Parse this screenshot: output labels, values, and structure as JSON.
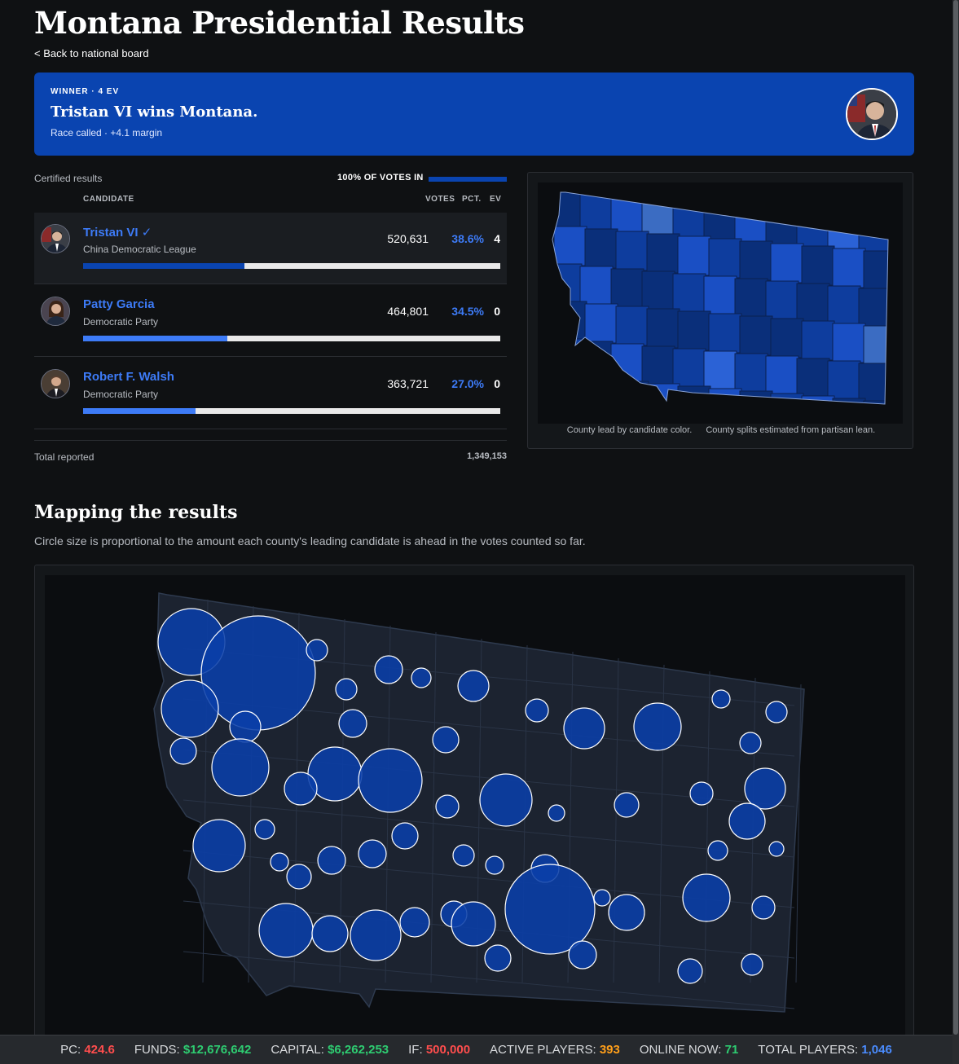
{
  "page": {
    "title": "Montana Presidential Results",
    "back_link": "< Back to national board"
  },
  "winner": {
    "tag": "WINNER · 4 EV",
    "headline": "Tristan VI wins Montana.",
    "sub": "Race called · +4.1 margin"
  },
  "results": {
    "certified_label": "Certified results",
    "votes_in": "100% OF VOTES IN",
    "col_candidate": "CANDIDATE",
    "col_votes": "VOTES",
    "col_pct": "PCT.",
    "col_ev": "EV",
    "candidates": [
      {
        "name": "Tristan VI ✓",
        "party": "China Democratic League",
        "votes": "520,631",
        "pct": "38.6%",
        "ev": "4",
        "share": 0.386,
        "bar_color": "#0a44b0"
      },
      {
        "name": "Patty Garcia",
        "party": "Democratic Party",
        "votes": "464,801",
        "pct": "34.5%",
        "ev": "0",
        "share": 0.345,
        "bar_color": "#3d7bf7"
      },
      {
        "name": "Robert F. Walsh",
        "party": "Democratic Party",
        "votes": "363,721",
        "pct": "27.0%",
        "ev": "0",
        "share": 0.27,
        "bar_color": "#3d7bf7"
      }
    ],
    "total_label": "Total reported",
    "total_value": "1,349,153"
  },
  "county_map": {
    "caption_1": "County lead by candidate color.",
    "caption_2": "County splits estimated from partisan lean.",
    "colors": [
      "#0a2f7a",
      "#0e3d9e",
      "#1a4fc4",
      "#2b62d6",
      "#3b6cc2"
    ]
  },
  "mapping": {
    "title": "Mapping the results",
    "description": "Circle size is proportional to the amount each county's leading candidate is ahead in the votes counted so far."
  },
  "status_bar": {
    "pc_label": "PC:",
    "pc_value": "424.6",
    "pc_color": "#ff4d4d",
    "funds_label": "FUNDS:",
    "funds_value": "$12,676,642",
    "funds_color": "#2ecc71",
    "capital_label": "CAPITAL:",
    "capital_value": "$6,262,253",
    "capital_color": "#2ecc71",
    "if_label": "IF:",
    "if_value": "500,000",
    "if_color": "#ff4d4d",
    "active_label": "ACTIVE PLAYERS:",
    "active_value": "393",
    "active_color": "#ff9f1a",
    "online_label": "ONLINE NOW:",
    "online_value": "71",
    "online_color": "#2ecc71",
    "total_label": "TOTAL PLAYERS:",
    "total_value": "1,046",
    "total_color": "#4a8cff"
  }
}
